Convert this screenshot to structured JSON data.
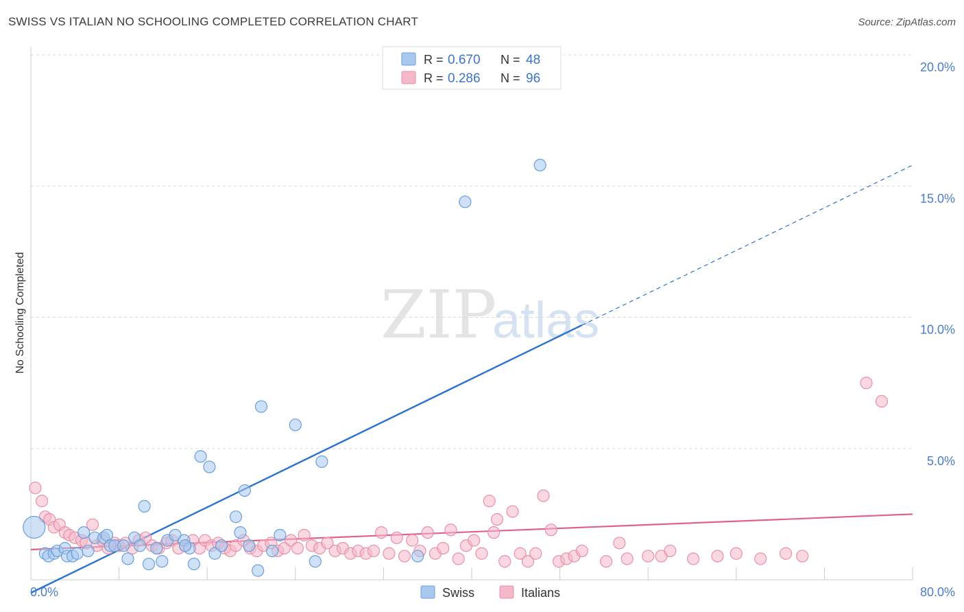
{
  "title": "SWISS VS ITALIAN NO SCHOOLING COMPLETED CORRELATION CHART",
  "source": "Source: ZipAtlas.com",
  "watermark": {
    "zip": "ZIP",
    "atlas": "atlas"
  },
  "colors": {
    "swiss_fill": "#a8c8f0",
    "swiss_stroke": "#6a9fd8",
    "swiss_line": "#2a72cc",
    "italian_fill": "#f5b8c8",
    "italian_stroke": "#e890a8",
    "italian_line": "#e06090",
    "tick_label": "#4a7ccc",
    "grid": "#d8d8d8"
  },
  "legend": {
    "rows": [
      {
        "r_label": "R = ",
        "r_value": "0.670",
        "n_label": "N = ",
        "n_value": "48"
      },
      {
        "r_label": "R = ",
        "r_value": "0.286",
        "n_label": "N = ",
        "n_value": "96"
      }
    ],
    "bottom": [
      "Swiss",
      "Italians"
    ]
  },
  "chart_data": {
    "type": "scatter",
    "title": "SWISS VS ITALIAN NO SCHOOLING COMPLETED CORRELATION CHART",
    "xlabel": "",
    "ylabel": "No Schooling Completed",
    "xlim": [
      0,
      80
    ],
    "ylim": [
      0,
      20
    ],
    "x_tick_labels": [
      "0.0%",
      "80.0%"
    ],
    "y_ticks": [
      5,
      10,
      15,
      20
    ],
    "y_tick_labels": [
      "5.0%",
      "10.0%",
      "15.0%",
      "20.0%"
    ],
    "grid": true,
    "legend_position": "top-center",
    "series": [
      {
        "name": "Swiss",
        "r": 0.67,
        "n": 48,
        "trend": {
          "x0": 0,
          "y0": -0.5,
          "x1": 50,
          "y1": 9.7,
          "dashed_to_x": 80,
          "dashed_to_y": 15.8
        },
        "points": [
          [
            0.3,
            2.0
          ],
          [
            1.3,
            1.0
          ],
          [
            1.6,
            0.9
          ],
          [
            2.1,
            1.0
          ],
          [
            2.4,
            1.1
          ],
          [
            3.1,
            1.2
          ],
          [
            3.3,
            0.9
          ],
          [
            3.8,
            0.9
          ],
          [
            4.2,
            1.0
          ],
          [
            4.8,
            1.8
          ],
          [
            5.2,
            1.1
          ],
          [
            5.8,
            1.6
          ],
          [
            6.6,
            1.6
          ],
          [
            6.9,
            1.7
          ],
          [
            7.2,
            1.3
          ],
          [
            7.6,
            1.3
          ],
          [
            8.4,
            1.3
          ],
          [
            8.8,
            0.8
          ],
          [
            9.4,
            1.6
          ],
          [
            9.9,
            1.3
          ],
          [
            10.3,
            2.8
          ],
          [
            10.7,
            0.6
          ],
          [
            11.4,
            1.2
          ],
          [
            11.9,
            0.7
          ],
          [
            12.4,
            1.5
          ],
          [
            13.1,
            1.7
          ],
          [
            13.9,
            1.5
          ],
          [
            14.4,
            1.2
          ],
          [
            14.8,
            0.6
          ],
          [
            15.4,
            4.7
          ],
          [
            16.2,
            4.3
          ],
          [
            16.7,
            1.0
          ],
          [
            17.3,
            1.3
          ],
          [
            18.6,
            2.4
          ],
          [
            19.0,
            1.8
          ],
          [
            19.4,
            3.4
          ],
          [
            19.8,
            1.3
          ],
          [
            20.6,
            0.35
          ],
          [
            20.9,
            6.6
          ],
          [
            21.9,
            1.1
          ],
          [
            22.6,
            1.7
          ],
          [
            24.0,
            5.9
          ],
          [
            25.8,
            0.7
          ],
          [
            26.4,
            4.5
          ],
          [
            35.1,
            0.9
          ],
          [
            39.4,
            14.4
          ],
          [
            46.2,
            15.8
          ],
          [
            14.0,
            1.3
          ]
        ]
      },
      {
        "name": "Italians",
        "r": 0.286,
        "n": 96,
        "trend": {
          "x0": 0,
          "y0": 1.15,
          "x1": 80,
          "y1": 2.5
        },
        "points": [
          [
            0.4,
            3.5
          ],
          [
            1.0,
            3.0
          ],
          [
            1.3,
            2.4
          ],
          [
            1.7,
            2.3
          ],
          [
            2.1,
            2.0
          ],
          [
            2.6,
            2.1
          ],
          [
            3.1,
            1.8
          ],
          [
            3.5,
            1.7
          ],
          [
            4.0,
            1.6
          ],
          [
            4.6,
            1.5
          ],
          [
            5.0,
            1.4
          ],
          [
            5.6,
            2.1
          ],
          [
            6.0,
            1.3
          ],
          [
            6.5,
            1.5
          ],
          [
            7.0,
            1.2
          ],
          [
            7.6,
            1.4
          ],
          [
            8.0,
            1.3
          ],
          [
            8.6,
            1.4
          ],
          [
            9.2,
            1.2
          ],
          [
            9.8,
            1.5
          ],
          [
            10.4,
            1.6
          ],
          [
            11.0,
            1.3
          ],
          [
            11.6,
            1.2
          ],
          [
            12.3,
            1.4
          ],
          [
            12.8,
            1.5
          ],
          [
            13.4,
            1.2
          ],
          [
            14.0,
            1.3
          ],
          [
            14.7,
            1.5
          ],
          [
            15.3,
            1.2
          ],
          [
            15.8,
            1.5
          ],
          [
            16.4,
            1.3
          ],
          [
            17.0,
            1.4
          ],
          [
            17.6,
            1.2
          ],
          [
            18.1,
            1.1
          ],
          [
            18.6,
            1.3
          ],
          [
            19.3,
            1.5
          ],
          [
            19.9,
            1.2
          ],
          [
            20.5,
            1.1
          ],
          [
            21.1,
            1.3
          ],
          [
            21.8,
            1.4
          ],
          [
            22.4,
            1.1
          ],
          [
            23.0,
            1.2
          ],
          [
            23.6,
            1.5
          ],
          [
            24.2,
            1.2
          ],
          [
            24.8,
            1.7
          ],
          [
            25.5,
            1.3
          ],
          [
            26.2,
            1.2
          ],
          [
            26.9,
            1.4
          ],
          [
            27.6,
            1.1
          ],
          [
            28.3,
            1.2
          ],
          [
            29.0,
            1.0
          ],
          [
            29.7,
            1.1
          ],
          [
            30.4,
            1.0
          ],
          [
            31.1,
            1.1
          ],
          [
            31.8,
            1.8
          ],
          [
            32.5,
            1.0
          ],
          [
            33.2,
            1.6
          ],
          [
            33.9,
            0.9
          ],
          [
            34.6,
            1.5
          ],
          [
            35.3,
            1.1
          ],
          [
            36.0,
            1.8
          ],
          [
            36.7,
            1.0
          ],
          [
            37.4,
            1.2
          ],
          [
            38.1,
            1.9
          ],
          [
            38.8,
            0.8
          ],
          [
            39.5,
            1.3
          ],
          [
            40.2,
            1.5
          ],
          [
            40.9,
            1.0
          ],
          [
            41.6,
            3.0
          ],
          [
            42.3,
            2.3
          ],
          [
            43.0,
            0.7
          ],
          [
            43.7,
            2.6
          ],
          [
            44.4,
            1.0
          ],
          [
            45.1,
            0.7
          ],
          [
            45.8,
            1.0
          ],
          [
            46.5,
            3.2
          ],
          [
            47.2,
            1.9
          ],
          [
            47.9,
            0.7
          ],
          [
            48.6,
            0.8
          ],
          [
            49.3,
            0.9
          ],
          [
            50.0,
            1.1
          ],
          [
            52.2,
            0.7
          ],
          [
            53.4,
            1.4
          ],
          [
            54.1,
            0.8
          ],
          [
            56.0,
            0.9
          ],
          [
            57.2,
            0.9
          ],
          [
            58.0,
            1.1
          ],
          [
            60.1,
            0.8
          ],
          [
            62.3,
            0.9
          ],
          [
            64.0,
            1.0
          ],
          [
            66.2,
            0.8
          ],
          [
            68.5,
            1.0
          ],
          [
            70.0,
            0.9
          ],
          [
            75.8,
            7.5
          ],
          [
            77.2,
            6.8
          ],
          [
            42.0,
            1.8
          ]
        ]
      }
    ]
  }
}
